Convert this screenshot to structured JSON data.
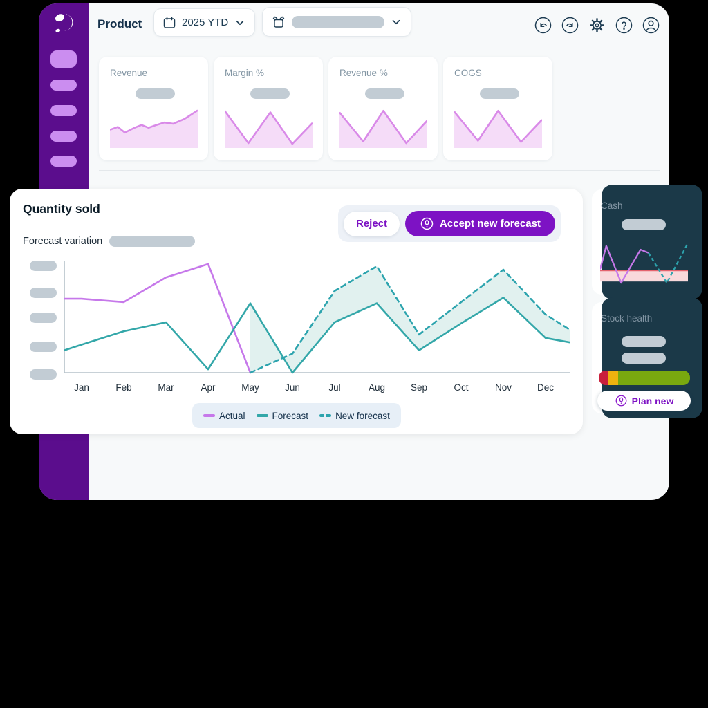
{
  "header": {
    "title": "Product",
    "date_selector": {
      "value": "2025 YTD",
      "icon": "calendar-icon"
    },
    "product_selector": {
      "value": "",
      "placeholder": "blank-placeholder",
      "icon": "box-icon"
    },
    "toolbar_icons": [
      "undo",
      "redo",
      "settings",
      "help",
      "profile"
    ]
  },
  "sidebar": {
    "logo": "brand-swirl-logo",
    "nav_items": 5
  },
  "kpi_cards": [
    {
      "title": "Revenue",
      "spark_id": "revenue_spark"
    },
    {
      "title": "Margin %",
      "spark_id": "margin_spark"
    },
    {
      "title": "Revenue %",
      "spark_id": "revenue_pct_spark"
    },
    {
      "title": "COGS",
      "spark_id": "cogs_spark"
    }
  ],
  "main_panel": {
    "title": "Quantity sold",
    "subtitle": "Forecast variation",
    "reject_label": "Reject",
    "accept_label": "Accept new forecast"
  },
  "legend": [
    {
      "label": "Actual",
      "style": "solid",
      "color": "#c678ea"
    },
    {
      "label": "Forecast",
      "style": "solid",
      "color": "#33a7a9"
    },
    {
      "label": "New forecast",
      "style": "dashed",
      "color": "#2da4ae"
    }
  ],
  "cash_card": {
    "title": "Cash"
  },
  "stock_card": {
    "title": "Stock health",
    "button_label": "Plan new"
  },
  "colors": {
    "sidebar": "#5b0d8d",
    "sidebar_pill": "#cb8df0",
    "accent_purple": "#7d12c4",
    "actual_line": "#c678ea",
    "forecast_line": "#33a7a9",
    "new_forecast_line": "#2da4ae",
    "band_fill": "#e1f1ef",
    "spark_line": "#d98ae8",
    "spark_fill": "#f5dcf8",
    "threshold_red": "#e4646e",
    "threshold_fill": "#f9d9db",
    "dark_backing": "#1b3948",
    "placeholder": "#c2ccd4",
    "text_dark": "#15314b",
    "text_gray": "#8295a3"
  },
  "chart_data": [
    {
      "id": "quantity_sold",
      "type": "line",
      "title": "Quantity sold",
      "categories": [
        "Jan",
        "Feb",
        "Mar",
        "Apr",
        "May",
        "Jun",
        "Jul",
        "Aug",
        "Sep",
        "Oct",
        "Nov",
        "Dec"
      ],
      "y_axis": "unlabeled-placeholder-ticks",
      "ylim": [
        0,
        100
      ],
      "band_between": [
        "Forecast",
        "New forecast"
      ],
      "series": [
        {
          "name": "Actual",
          "color": "#c678ea",
          "style": "solid",
          "start": 66,
          "values": [
            66,
            63,
            85,
            97,
            0,
            null,
            null,
            null,
            null,
            null,
            null,
            null
          ]
        },
        {
          "name": "Forecast",
          "color": "#33a7a9",
          "style": "solid",
          "start": 20,
          "values": [
            25,
            37,
            45,
            3,
            62,
            0,
            45,
            62,
            20,
            44,
            67,
            31
          ],
          "end": 27
        },
        {
          "name": "New forecast",
          "color": "#2da4ae",
          "style": "dashed",
          "values": [
            null,
            null,
            null,
            null,
            0,
            17,
            73,
            95,
            34,
            63,
            92,
            52
          ],
          "end": 38
        }
      ]
    },
    {
      "id": "revenue_spark",
      "type": "area",
      "title": "Revenue",
      "points": [
        [
          0,
          45
        ],
        [
          9,
          52
        ],
        [
          17,
          38
        ],
        [
          28,
          50
        ],
        [
          36,
          57
        ],
        [
          44,
          50
        ],
        [
          53,
          57
        ],
        [
          62,
          63
        ],
        [
          72,
          60
        ],
        [
          85,
          72
        ],
        [
          100,
          93
        ]
      ]
    },
    {
      "id": "margin_spark",
      "type": "area",
      "title": "Margin %",
      "points": [
        [
          0,
          92
        ],
        [
          27,
          12
        ],
        [
          52,
          88
        ],
        [
          77,
          10
        ],
        [
          100,
          62
        ]
      ]
    },
    {
      "id": "revenue_pct_spark",
      "type": "area",
      "title": "Revenue %",
      "points": [
        [
          0,
          88
        ],
        [
          27,
          16
        ],
        [
          50,
          92
        ],
        [
          76,
          12
        ],
        [
          100,
          68
        ]
      ]
    },
    {
      "id": "cogs_spark",
      "type": "area",
      "title": "COGS",
      "points": [
        [
          0,
          90
        ],
        [
          27,
          18
        ],
        [
          50,
          92
        ],
        [
          76,
          15
        ],
        [
          100,
          70
        ]
      ]
    },
    {
      "id": "cash_spark",
      "type": "line",
      "title": "Cash",
      "threshold": 30,
      "series": [
        {
          "name": "actual",
          "color": "#c678ea",
          "style": "solid",
          "points": [
            [
              0,
              33
            ],
            [
              7,
              90
            ],
            [
              24,
              0
            ],
            [
              46,
              81
            ],
            [
              55,
              73
            ]
          ]
        },
        {
          "name": "projected",
          "color": "#2da4ae",
          "style": "dashed",
          "points": [
            [
              55,
              73
            ],
            [
              76,
              0
            ],
            [
              100,
              97
            ]
          ]
        }
      ]
    },
    {
      "id": "stock_bar",
      "type": "bar",
      "title": "Stock health",
      "segments": [
        {
          "label": "critical",
          "color": "#c9203c",
          "pct": 10
        },
        {
          "label": "warning",
          "color": "#eeb20f",
          "pct": 11
        },
        {
          "label": "healthy",
          "color": "#79a80f",
          "pct": 79
        }
      ]
    }
  ]
}
